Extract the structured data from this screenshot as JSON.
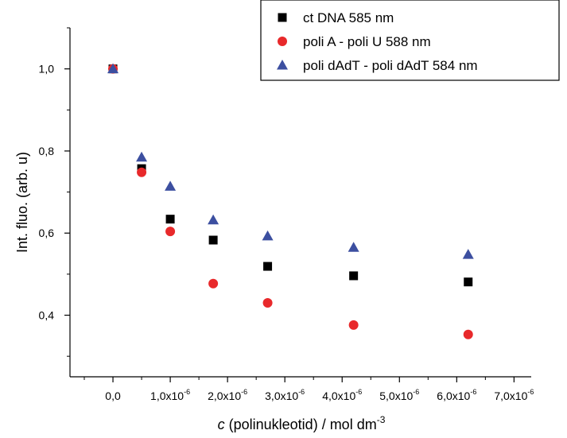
{
  "chart_data": {
    "type": "scatter",
    "xlabel": {
      "italic": "c",
      "rest": " (polinukleotid) / mol dm",
      "sup": "-3"
    },
    "ylabel": "Int. fluo. (arb. u)",
    "xlim": [
      -7.5e-07,
      7.3e-06
    ],
    "ylim": [
      0.25,
      1.1
    ],
    "x_ticks": [
      {
        "value": 0,
        "label": "0,0",
        "sup": ""
      },
      {
        "value": 1e-06,
        "label": "1,0x10",
        "sup": "-6"
      },
      {
        "value": 2e-06,
        "label": "2,0x10",
        "sup": "-6"
      },
      {
        "value": 3e-06,
        "label": "3,0x10",
        "sup": "-6"
      },
      {
        "value": 4e-06,
        "label": "4,0x10",
        "sup": "-6"
      },
      {
        "value": 5e-06,
        "label": "5,0x10",
        "sup": "-6"
      },
      {
        "value": 6e-06,
        "label": "6,0x10",
        "sup": "-6"
      },
      {
        "value": 7e-06,
        "label": "7,0x10",
        "sup": "-6"
      }
    ],
    "y_ticks": [
      {
        "value": 0.4,
        "label": "0,4"
      },
      {
        "value": 0.6,
        "label": "0,6"
      },
      {
        "value": 0.8,
        "label": "0,8"
      },
      {
        "value": 1.0,
        "label": "1,0"
      }
    ],
    "grid": false,
    "legend_position": "top-right",
    "series": [
      {
        "name": "ct DNA 585 nm",
        "marker": "square",
        "color": "#000000",
        "x": [
          0,
          5e-07,
          1e-06,
          1.75e-06,
          2.7e-06,
          4.2e-06,
          6.2e-06
        ],
        "y": [
          1.0,
          0.757,
          0.634,
          0.583,
          0.519,
          0.496,
          0.481
        ]
      },
      {
        "name": "poli A - poli U 588 nm",
        "marker": "circle",
        "color": "#e8292b",
        "x": [
          0,
          5e-07,
          1e-06,
          1.75e-06,
          2.7e-06,
          4.2e-06,
          6.2e-06
        ],
        "y": [
          1.0,
          0.748,
          0.604,
          0.477,
          0.43,
          0.376,
          0.353
        ]
      },
      {
        "name": "poli dAdT - poli dAdT 584 nm",
        "marker": "triangle",
        "color": "#3c4fa0",
        "x": [
          0,
          5e-07,
          1e-06,
          1.75e-06,
          2.7e-06,
          4.2e-06,
          6.2e-06
        ],
        "y": [
          1.0,
          0.785,
          0.714,
          0.632,
          0.593,
          0.565,
          0.548
        ]
      }
    ]
  }
}
